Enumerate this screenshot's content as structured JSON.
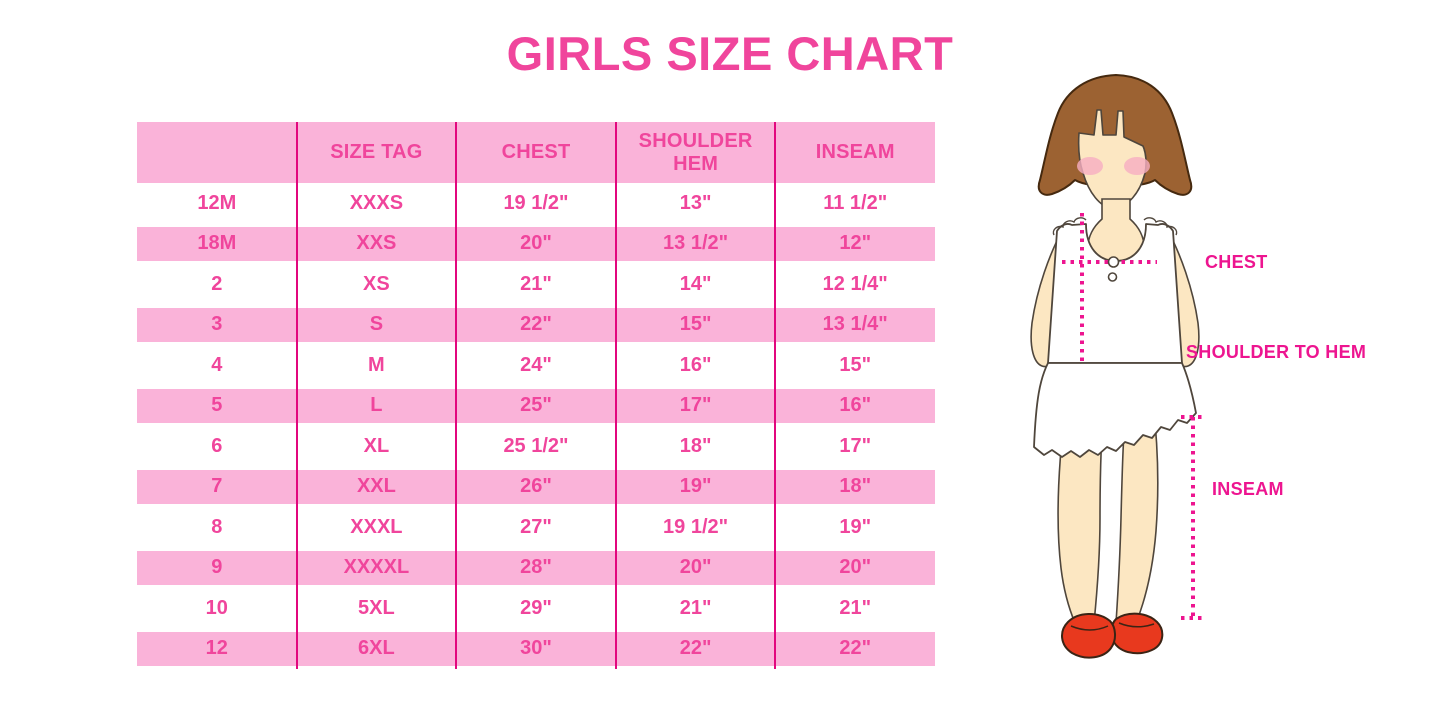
{
  "title": "GIRLS SIZE CHART",
  "chart_data": {
    "type": "table",
    "title": "GIRLS SIZE CHART",
    "columns": [
      "",
      "SIZE TAG",
      "CHEST",
      "SHOULDER HEM",
      "INSEAM"
    ],
    "rows": [
      [
        "12M",
        "XXXS",
        "19 1/2\"",
        "13\"",
        "11 1/2\""
      ],
      [
        "18M",
        "XXS",
        "20\"",
        "13 1/2\"",
        "12\""
      ],
      [
        "2",
        "XS",
        "21\"",
        "14\"",
        "12 1/4\""
      ],
      [
        "3",
        "S",
        "22\"",
        "15\"",
        "13 1/4\""
      ],
      [
        "4",
        "M",
        "24\"",
        "16\"",
        "15\""
      ],
      [
        "5",
        "L",
        "25\"",
        "17\"",
        "16\""
      ],
      [
        "6",
        "XL",
        "25 1/2\"",
        "18\"",
        "17\""
      ],
      [
        "7",
        "XXL",
        "26\"",
        "19\"",
        "18\""
      ],
      [
        "8",
        "XXXL",
        "27\"",
        "19 1/2\"",
        "19\""
      ],
      [
        "9",
        "XXXXL",
        "28\"",
        "20\"",
        "20\""
      ],
      [
        "10",
        "5XL",
        "29\"",
        "21\"",
        "21\""
      ],
      [
        "12",
        "6XL",
        "30\"",
        "22\"",
        "22\""
      ]
    ],
    "row_stripe_pattern": "alternating white / pink starting white",
    "annotations": [
      "CHEST",
      "SHOULDER TO HEM",
      "INSEAM"
    ]
  },
  "diagram": {
    "figure": "girl-measurement-illustration",
    "labels": {
      "chest": "CHEST",
      "shoulder_to_hem": "SHOULDER TO HEM",
      "inseam": "INSEAM"
    }
  },
  "colors": {
    "title_pink": "#F0459C",
    "table_text_pink": "#F0459C",
    "stripe_pink": "#FAB3D9",
    "divider_magenta": "#E2077E",
    "annotation_magenta": "#ED1590",
    "hair_brown": "#9C6232",
    "skin": "#FCE7C2",
    "shoe_red": "#E8391E"
  }
}
